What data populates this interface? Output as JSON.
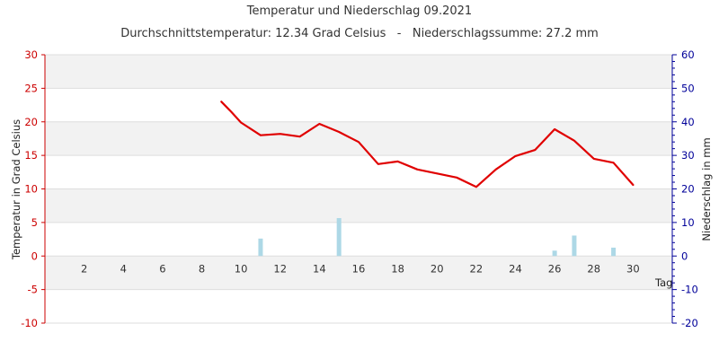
{
  "chart_data": {
    "type": "line",
    "title": "Temperatur und Niederschlag 09.2021",
    "subtitle": "Durchschnittstemperatur: 12.34 Grad Celsius   -   Niederschlagssumme: 27.2 mm",
    "xlabel": "Tag",
    "ylabel_left": "Temperatur in Grad Celsius",
    "ylabel_right": "Niederschlag in mm",
    "xlim": [
      0,
      32
    ],
    "ylim_left": [
      -10,
      30
    ],
    "ylim_right": [
      -20,
      60
    ],
    "x_ticks": [
      2,
      4,
      6,
      8,
      10,
      12,
      14,
      16,
      18,
      20,
      22,
      24,
      26,
      28,
      30
    ],
    "y_ticks_left": [
      -10,
      -5,
      0,
      5,
      10,
      15,
      20,
      25,
      30
    ],
    "y_ticks_right": [
      -20,
      -10,
      0,
      10,
      20,
      30,
      40,
      50,
      60
    ],
    "grid": true,
    "series": [
      {
        "axis": "left",
        "type": "line",
        "color": "#e00000",
        "x": [
          9,
          9.5,
          10,
          11,
          12,
          13,
          14,
          15,
          16,
          17,
          18,
          19,
          20,
          21,
          22,
          23,
          24,
          25,
          26,
          27,
          28,
          29,
          30
        ],
        "values": [
          23.0,
          21.5,
          19.9,
          18.0,
          18.2,
          17.8,
          19.7,
          18.5,
          17.0,
          13.7,
          14.1,
          12.9,
          12.3,
          11.7,
          10.3,
          12.9,
          14.9,
          15.8,
          18.9,
          17.2,
          14.5,
          13.9,
          10.6
        ]
      },
      {
        "axis": "right",
        "type": "bar",
        "color": "#add8e6",
        "x": [
          11,
          15,
          26,
          27,
          29
        ],
        "values": [
          5.2,
          11.3,
          1.6,
          6.1,
          2.5
        ]
      }
    ]
  }
}
